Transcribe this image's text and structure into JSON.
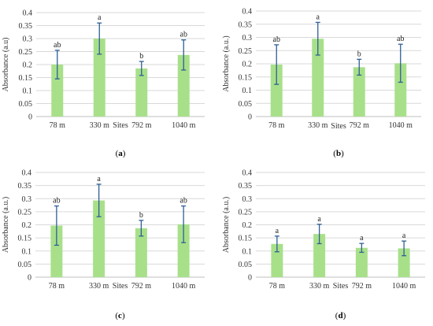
{
  "chart_data": [
    {
      "type": "bar",
      "panel": "a",
      "categories": [
        "78 m",
        "330 m",
        "792 m",
        "1040 m"
      ],
      "values": [
        0.2,
        0.3,
        0.185,
        0.237
      ],
      "errors": [
        0.055,
        0.06,
        0.027,
        0.058
      ],
      "labels": [
        "ab",
        "a",
        "b",
        "ab"
      ],
      "xlabel": "Sites",
      "ylabel": "Absorbance (a.u)",
      "ylim": [
        0,
        0.4
      ],
      "yticks": [
        "0",
        "0.05",
        "0.1",
        "0.15",
        "0.2",
        "0.25",
        "0.3",
        "0.35",
        "0.4"
      ],
      "grid": true
    },
    {
      "type": "bar",
      "panel": "b",
      "categories": [
        "78 m",
        "330 m",
        "792 m",
        "1040 m"
      ],
      "values": [
        0.197,
        0.295,
        0.187,
        0.202
      ],
      "errors": [
        0.075,
        0.062,
        0.03,
        0.072
      ],
      "labels": [
        "ab",
        "a",
        "b",
        "ab"
      ],
      "xlabel": "Sites",
      "ylabel": "Absorbance (a.u.)",
      "ylim": [
        0,
        0.4
      ],
      "yticks": [
        "0",
        "0.05",
        "0.1",
        "0.15",
        "0.2",
        "0.25",
        "0.3",
        "0.35",
        "0.4"
      ],
      "grid": true
    },
    {
      "type": "bar",
      "panel": "c",
      "categories": [
        "78 m",
        "330 m",
        "792 m",
        "1040 m"
      ],
      "values": [
        0.197,
        0.293,
        0.187,
        0.202
      ],
      "errors": [
        0.075,
        0.062,
        0.03,
        0.07
      ],
      "labels": [
        "ab",
        "a",
        "b",
        "ab"
      ],
      "xlabel": "Sites",
      "ylabel": "Absorbance (a.u.)",
      "ylim": [
        0,
        0.4
      ],
      "yticks": [
        "0",
        "0.05",
        "0.1",
        "0.15",
        "0.2",
        "0.25",
        "0.3",
        "0.35",
        "0.4"
      ],
      "grid": true
    },
    {
      "type": "bar",
      "panel": "d",
      "categories": [
        "78 m",
        "330 m",
        "792 m",
        "1040 m"
      ],
      "values": [
        0.127,
        0.165,
        0.112,
        0.11
      ],
      "errors": [
        0.03,
        0.037,
        0.017,
        0.028
      ],
      "labels": [
        "a",
        "a",
        "a",
        "a"
      ],
      "xlabel": "Sites",
      "ylabel": "Absorbance (a.u.)",
      "ylim": [
        0,
        0.4
      ],
      "yticks": [
        "0",
        "0.05",
        "0.1",
        "0.15",
        "0.2",
        "0.25",
        "0.3",
        "0.35",
        "0.4"
      ],
      "grid": true
    }
  ],
  "panel_letters": [
    "a",
    "b",
    "c",
    "d"
  ],
  "colors": {
    "bar": "#a8e08a",
    "error": "#2e5f95",
    "grid": "#d9d9d9",
    "axis": "#bfbfbf"
  }
}
